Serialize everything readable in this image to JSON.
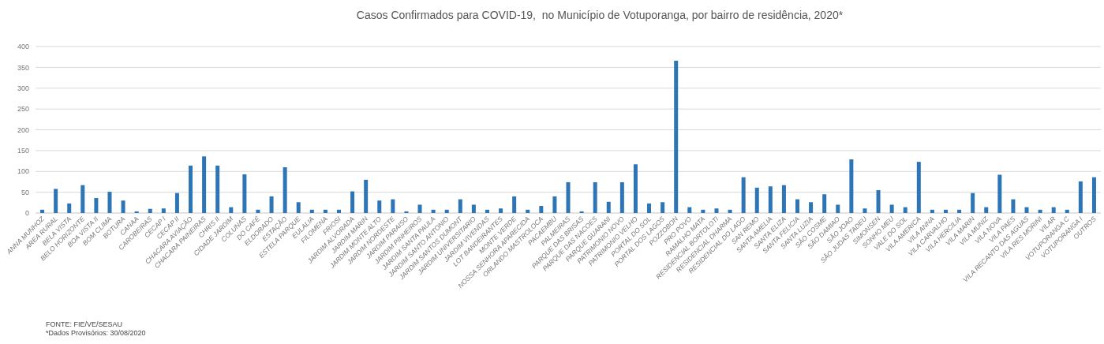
{
  "chart_data": {
    "type": "bar",
    "title": "Casos Confirmados para COVID-19,  no Município de Votuporanga, por bairro de residência, 2020*",
    "categories": [
      "ANNA MUNHOZ",
      "AREA RURAL",
      "BELA VISTA",
      "BELO HORIZONTE",
      "BOA VISTA II",
      "BOM CLIMA",
      "BOTURA",
      "CANAA",
      "CAROBEIRAS",
      "CECAP I",
      "CECAP II",
      "CHACARA AVIAÇÃO",
      "CHACARA PAINEIRAS",
      "CHRIS II",
      "CIDADE JARDIM",
      "COLUNAS",
      "DO CAFÉ",
      "ELDORADO",
      "ESTAÇÃO",
      "ESTELA PARQUE",
      "EULALIA",
      "FILOMENA",
      "FRIOSI",
      "JARDIM ALVORADA",
      "JARDIM MARIN",
      "JARDIM MONTE ALTO",
      "JARDIM NORDESTE",
      "JARDIM PARAISO",
      "JARDIM PINHEIROS",
      "JARDIM SANTA PAULA",
      "JARDIM SANTO ANTONIO",
      "JARDIM SANTOS DUMONT",
      "JARDIM UNIVERSITARIO",
      "JARDIM VIVENDAS",
      "LOT BANDEIRANTES",
      "MONTE VERDE",
      "NOSSA SENHORA APARECIDA",
      "ORLANDO MASTROLOCA",
      "PACAEMBU",
      "PALMEIRAS",
      "PARQUE DAS BRISAS",
      "PARQUE DAS NACOES",
      "PARQUE GUARANI",
      "PATRIMONIO NOVO",
      "PATRIMONIO VELHO",
      "PORTAL DO SOL",
      "PORTAL DOS LAGOS",
      "POZZOBON",
      "PRO POVO",
      "RAMALHO MATA",
      "RESIDENCIAL BORTOLOTI",
      "RESIDENCIAL DHARMA",
      "RESIDENCIAL DO LAGO",
      "SAN REMO",
      "SANTA AMELIA",
      "SANTA ELIZA",
      "SANTA FELICIA",
      "SANTA LUZIA",
      "SÃO COSME",
      "SÃO DAMIAO",
      "SÃO JOAO",
      "SÃO JUDAS TADEU",
      "SIMONSEN",
      "SONHO MEU",
      "VALE DO SOL",
      "VILA AMERICA",
      "VILA ANNA",
      "VILA CARVALHO",
      "VILA HERCILIA",
      "VILA MARIN",
      "VILA MUNIZ",
      "VILA NOVA",
      "VILA PAES",
      "VILA RECANTO DAS AGUAS",
      "VILA RES MORINI",
      "VILAR",
      "VOTUPORANGA C",
      "VOTUPORANGA I",
      "OUTROS"
    ],
    "values": [
      8,
      58,
      23,
      67,
      36,
      51,
      30,
      4,
      10,
      11,
      48,
      114,
      136,
      114,
      14,
      93,
      8,
      40,
      110,
      26,
      8,
      8,
      8,
      52,
      80,
      30,
      33,
      4,
      20,
      8,
      8,
      33,
      20,
      8,
      11,
      40,
      8,
      17,
      40,
      74,
      4,
      74,
      27,
      74,
      117,
      23,
      26,
      366,
      14,
      8,
      11,
      8,
      86,
      61,
      64,
      67,
      33,
      26,
      45,
      20,
      129,
      11,
      55,
      20,
      14,
      123,
      8,
      8,
      8,
      48,
      14,
      92,
      33,
      14,
      8,
      14,
      8,
      76,
      86
    ],
    "color": "#2e75b6",
    "ylim": [
      0,
      400
    ],
    "yticks": [
      0,
      50,
      100,
      150,
      200,
      250,
      300,
      350,
      400
    ],
    "grid": "y",
    "annotations": [
      "FONTE: FIE/VE/SESAU",
      "*Dados Provisórios: 30/08/2020"
    ]
  }
}
